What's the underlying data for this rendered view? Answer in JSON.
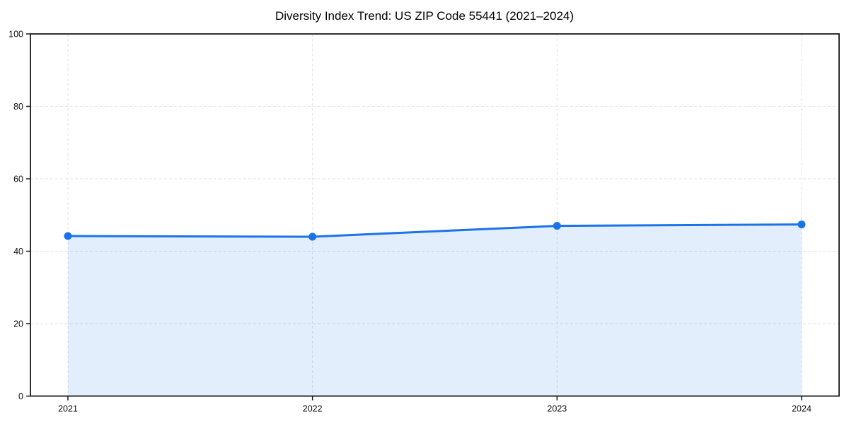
{
  "chart_data": {
    "type": "line",
    "title": "Diversity Index Trend: US ZIP Code 55441 (2021–2024)",
    "x": [
      2021,
      2022,
      2023,
      2024
    ],
    "x_tick_labels": [
      "2021",
      "2022",
      "2023",
      "2024"
    ],
    "series": [
      {
        "name": "Diversity Index",
        "values": [
          44.2,
          44.0,
          47.0,
          47.4
        ]
      }
    ],
    "xlabel": "",
    "ylabel": "",
    "ylim": [
      0,
      100
    ],
    "y_ticks": [
      0,
      20,
      40,
      60,
      80,
      100
    ],
    "grid": "dashed light-gray gridlines, horizontal at y ticks and vertical at each year",
    "legend": "none",
    "area_fill": true,
    "marker": "filled circle on each data point",
    "colors": {
      "line": "#1a73e8",
      "marker": "#1a73e8",
      "area_fill": "rgba(26,115,232,0.12)",
      "gridline": "#e3e3e3",
      "spine": "#1a1a1a",
      "tick": "#1a1a1a",
      "tick_label": "#111111",
      "title": "#000000",
      "background": "#ffffff"
    }
  }
}
